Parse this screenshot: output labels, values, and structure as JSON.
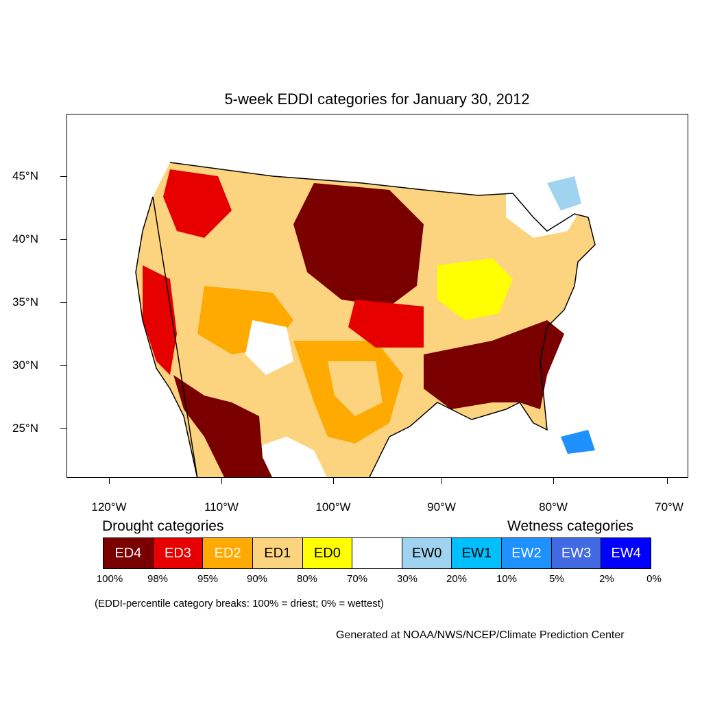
{
  "title": "5-week EDDI categories for January 30, 2012",
  "lat_labels": [
    "45°N",
    "40°N",
    "35°N",
    "30°N",
    "25°N"
  ],
  "lon_labels": [
    "120°W",
    "110°W",
    "100°W",
    "90°W",
    "80°W",
    "70°W"
  ],
  "legend": {
    "drought_heading": "Drought categories",
    "wetness_heading": "Wetness categories",
    "categories": [
      {
        "label": "ED4",
        "color": "#7a0000",
        "text_color": "#ffffff"
      },
      {
        "label": "ED3",
        "color": "#e60000",
        "text_color": "#ffffff"
      },
      {
        "label": "ED2",
        "color": "#ffaa00",
        "text_color": "#ffffff"
      },
      {
        "label": "ED1",
        "color": "#fcd37f",
        "text_color": "#000000"
      },
      {
        "label": "ED0",
        "color": "#ffff00",
        "text_color": "#000000"
      },
      {
        "label": "",
        "color": "#ffffff",
        "text_color": "#000000"
      },
      {
        "label": "EW0",
        "color": "#9fd3f0",
        "text_color": "#000000"
      },
      {
        "label": "EW1",
        "color": "#00bfff",
        "text_color": "#000000"
      },
      {
        "label": "EW2",
        "color": "#1e90ff",
        "text_color": "#ffffff"
      },
      {
        "label": "EW3",
        "color": "#4169e1",
        "text_color": "#ffffff"
      },
      {
        "label": "EW4",
        "color": "#0000ff",
        "text_color": "#ffffff"
      }
    ],
    "percent_breaks": [
      "100%",
      "98%",
      "95%",
      "90%",
      "80%",
      "70%",
      "30%",
      "20%",
      "10%",
      "5%",
      "2%",
      "0%"
    ]
  },
  "note": "(EDDI-percentile category breaks: 100% = driest; 0% = wettest)",
  "credit": "Generated at NOAA/NWS/NCEP/Climate Prediction Center"
}
